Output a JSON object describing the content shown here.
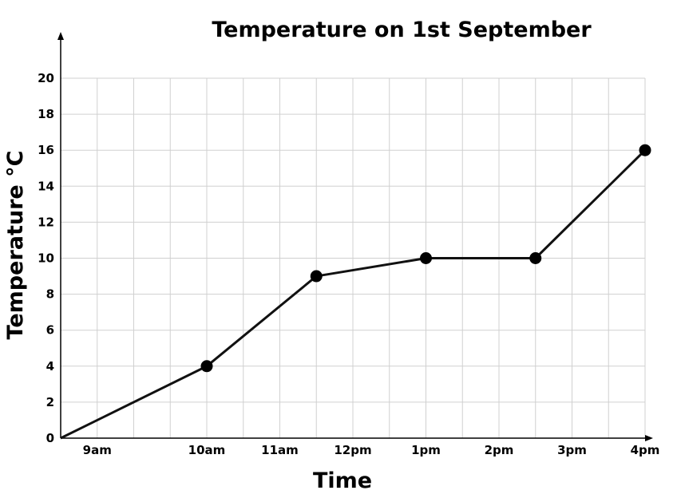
{
  "chart_data": {
    "type": "line",
    "title": "Temperature on 1st September",
    "xlabel": "Time",
    "ylabel": "Temperature °C",
    "x_tick_labels": [
      "9am",
      "10am",
      "11am",
      "12pm",
      "1pm",
      "2pm",
      "3pm",
      "4pm"
    ],
    "y_ticks": [
      0,
      2,
      4,
      6,
      8,
      10,
      12,
      14,
      16,
      18,
      20
    ],
    "ylim": [
      0,
      20
    ],
    "xlim": [
      8,
      16
    ],
    "grid": true,
    "series": [
      {
        "x": [
          8,
          10,
          11.5,
          13,
          14.5,
          16
        ],
        "y": [
          0,
          4,
          9,
          10,
          10,
          16
        ],
        "marker_at_origin": false
      }
    ],
    "colors": {
      "line": "#111111",
      "marker": "#000000",
      "grid": "#d0d0d0"
    }
  }
}
